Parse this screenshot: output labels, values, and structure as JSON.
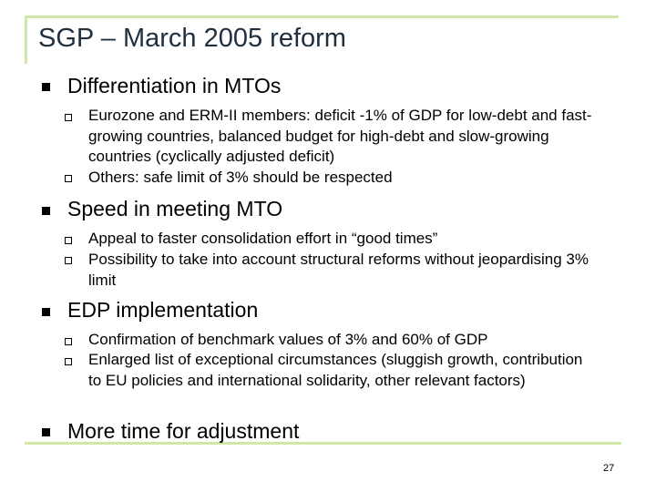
{
  "slide": {
    "title": "SGP – March 2005 reform",
    "page_number": "27",
    "accent_color": "#cfe8a8",
    "bullets": [
      {
        "text": "Differentiation in MTOs",
        "sub": [
          "Eurozone and ERM-II members: deficit -1% of GDP for low-debt and fast-growing countries, balanced budget for high-debt and slow-growing countries (cyclically adjusted deficit)",
          "Others: safe limit of 3% should be respected"
        ]
      },
      {
        "text": "Speed in meeting MTO",
        "sub": [
          "Appeal to faster consolidation effort in “good times”",
          "Possibility to take into account structural reforms without jeopardising 3% limit"
        ]
      },
      {
        "text": "EDP implementation",
        "sub": [
          "Confirmation of benchmark values of 3% and 60% of GDP",
          "Enlarged list of exceptional circumstances (sluggish growth, contribution to EU policies and international solidarity, other relevant factors)"
        ]
      },
      {
        "text": "More time for adjustment",
        "sub": []
      }
    ]
  }
}
